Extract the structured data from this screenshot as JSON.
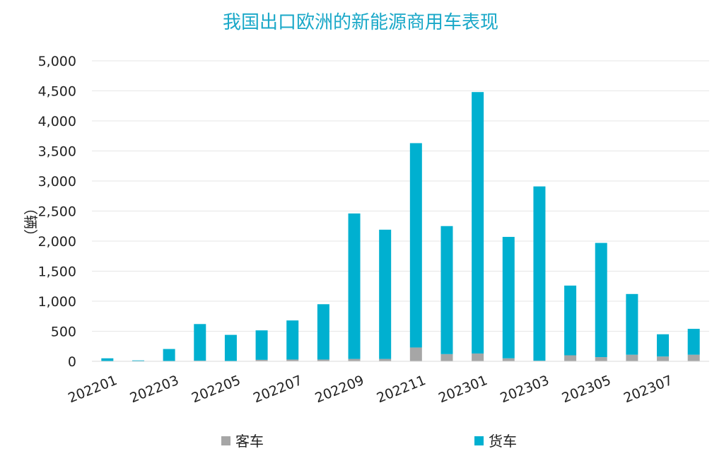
{
  "chart_data": {
    "type": "bar",
    "stacked": true,
    "title": "我国出口欧洲的新能源商用车表现",
    "ylabel": "（辆）",
    "xlabel": "",
    "ylim": [
      0,
      5000
    ],
    "yticks": [
      0,
      500,
      1000,
      1500,
      2000,
      2500,
      3000,
      3500,
      4000,
      4500,
      5000
    ],
    "ytick_labels": [
      "0",
      "500",
      "1,000",
      "1,500",
      "2,000",
      "2,500",
      "3,000",
      "3,500",
      "4,000",
      "4,500",
      "5,000"
    ],
    "categories": [
      "202201",
      "202202",
      "202203",
      "202204",
      "202205",
      "202206",
      "202207",
      "202208",
      "202209",
      "202210",
      "202211",
      "202212",
      "202301",
      "202302",
      "202303",
      "202304",
      "202305",
      "202306",
      "202307",
      "202308"
    ],
    "xtick_labels": [
      "202201",
      "202203",
      "202205",
      "202207",
      "202209",
      "202211",
      "202301",
      "202303",
      "202305",
      "202307"
    ],
    "grid": true,
    "legend_position": "bottom",
    "colors": {
      "title": "#1aa8c8",
      "passenger": "#a6a6a6",
      "truck": "#00b0d0",
      "grid": "#e6e6e6"
    },
    "series": [
      {
        "name": "客车",
        "values": [
          0,
          0,
          0,
          10,
          5,
          25,
          30,
          30,
          40,
          40,
          230,
          120,
          130,
          50,
          10,
          100,
          70,
          110,
          80,
          110
        ]
      },
      {
        "name": "货车",
        "values": [
          50,
          15,
          205,
          610,
          435,
          490,
          650,
          920,
          2420,
          2150,
          3400,
          2130,
          4350,
          2020,
          2900,
          1160,
          1900,
          1010,
          370,
          430
        ]
      }
    ]
  }
}
